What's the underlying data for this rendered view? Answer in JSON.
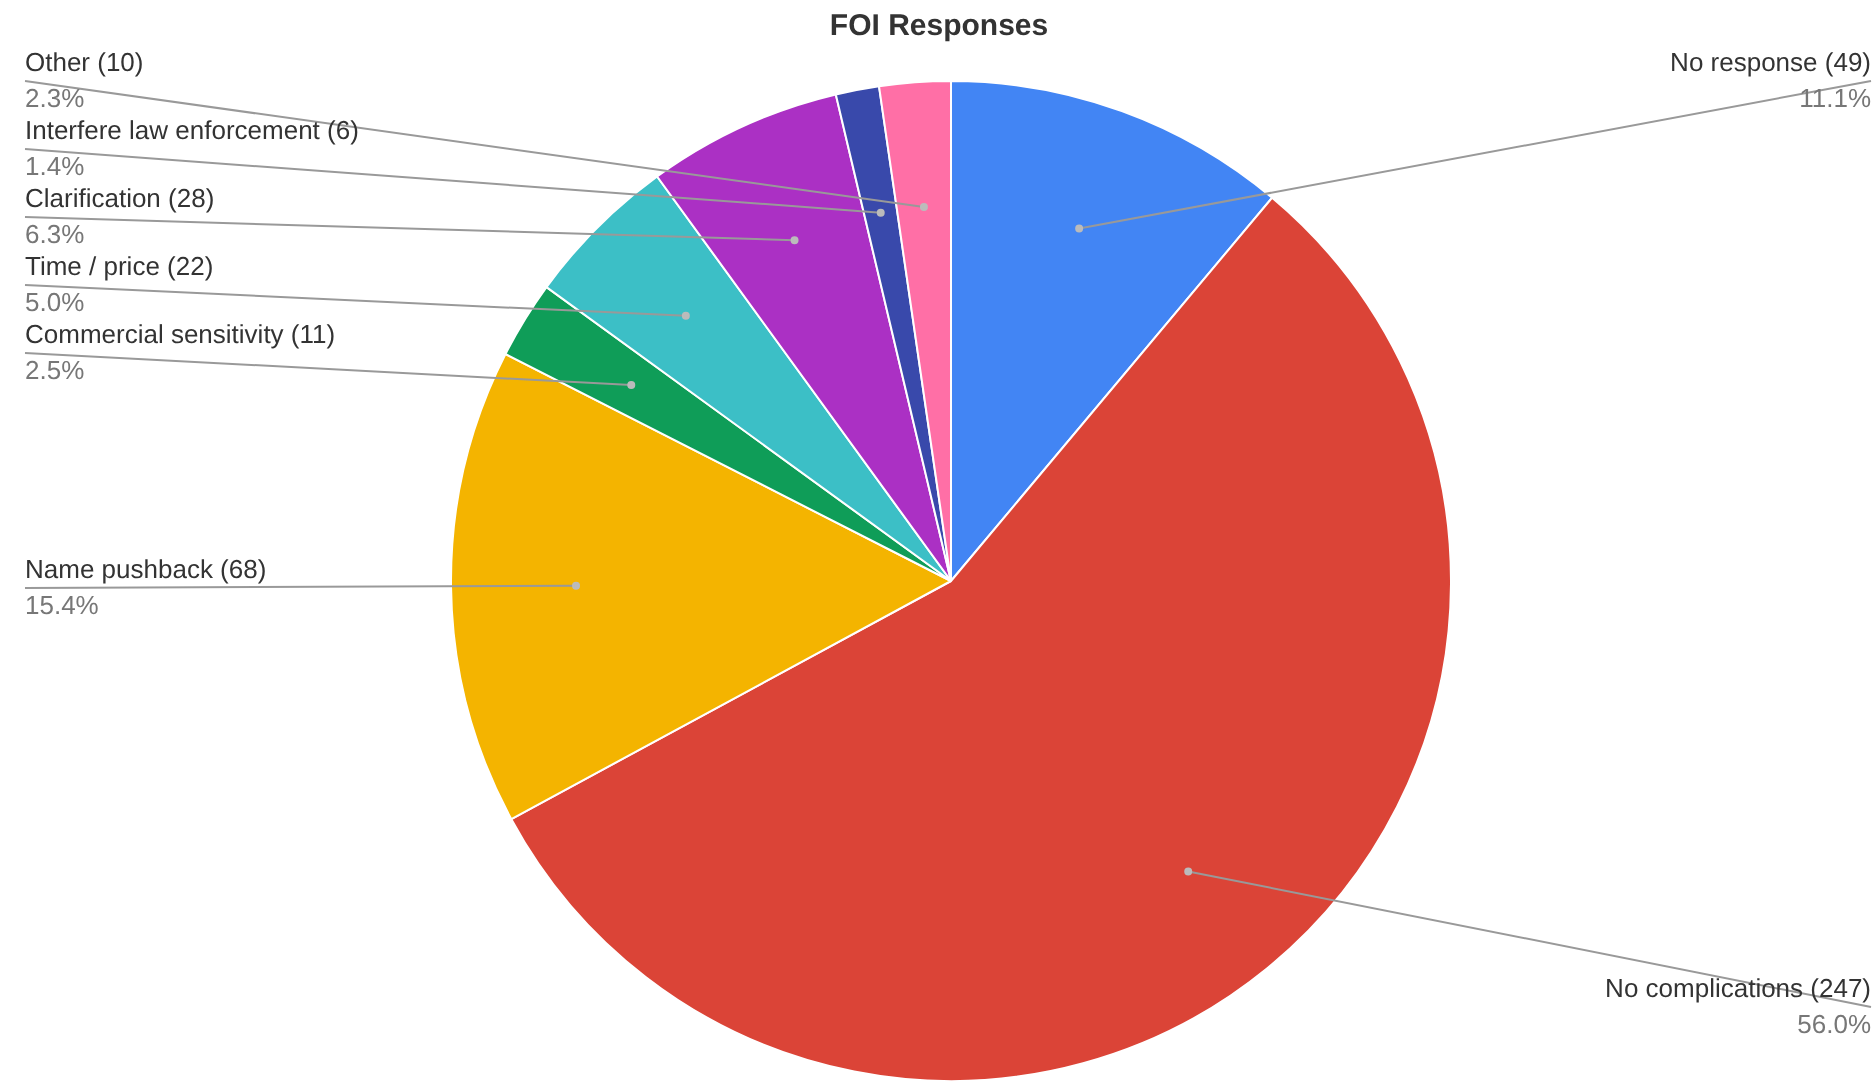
{
  "chart_data": {
    "type": "pie",
    "title": "FOI Responses",
    "categories": [
      "No response (49)",
      "No complications (247)",
      "Name pushback (68)",
      "Commercial sensitivity (11)",
      "Time / price (22)",
      "Clarification (28)",
      "Interfere law enforcement (6)",
      "Other (10)"
    ],
    "values": [
      11.1,
      56.0,
      15.4,
      2.5,
      5.0,
      6.3,
      1.4,
      2.3
    ],
    "colors": [
      "#4285f4",
      "#db4437",
      "#f4b400",
      "#0f9d58",
      "#3cbfc6",
      "#ab30c4",
      "#3949ab",
      "#ff6fa6"
    ],
    "value_labels": [
      "11.1%",
      "56.0%",
      "15.4%",
      "2.5%",
      "5.0%",
      "6.3%",
      "1.4%",
      "2.3%"
    ]
  }
}
